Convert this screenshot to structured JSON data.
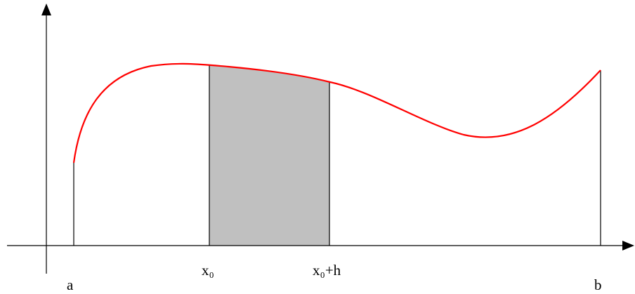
{
  "labels": {
    "a": "a",
    "x0": "x₀",
    "x0_plus_h": "x₀+h",
    "b": "b"
  },
  "colors": {
    "curve": "#ff0000",
    "shaded_region": "#c0c0c0",
    "axes": "#000000",
    "background": "#ffffff"
  }
}
